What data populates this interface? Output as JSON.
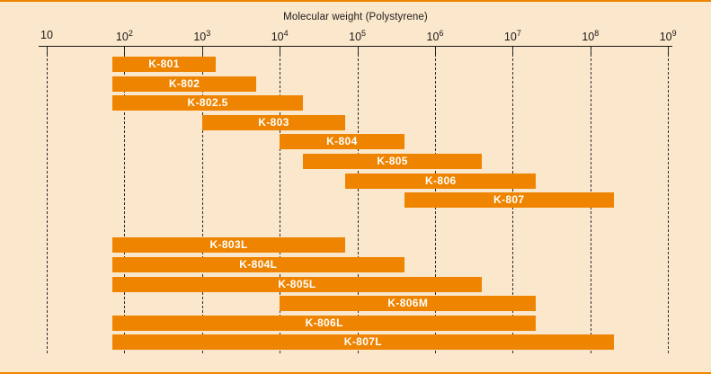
{
  "page": {
    "background_color": "#fbe7cc",
    "frame_color": "#ee8400"
  },
  "chart_data": {
    "type": "bar",
    "subtype": "horizontal-log-range",
    "title": "Molecular weight (Polystyrene)",
    "x_axis": {
      "scale": "log10",
      "min": 10,
      "max": 1000000000,
      "ticks": [
        {
          "value": 10,
          "base": "10",
          "exp": ""
        },
        {
          "value": 100,
          "base": "10",
          "exp": "2"
        },
        {
          "value": 1000,
          "base": "10",
          "exp": "3"
        },
        {
          "value": 10000,
          "base": "10",
          "exp": "4"
        },
        {
          "value": 100000,
          "base": "10",
          "exp": "5"
        },
        {
          "value": 1000000,
          "base": "10",
          "exp": "6"
        },
        {
          "value": 10000000,
          "base": "10",
          "exp": "7"
        },
        {
          "value": 100000000,
          "base": "10",
          "exp": "8"
        },
        {
          "value": 1000000000,
          "base": "10",
          "exp": "9"
        }
      ]
    },
    "grid": "vertical-dashed",
    "legend": "none",
    "bar_color": "#ee8400",
    "bar_label_color": "#ffffff",
    "groups": [
      {
        "name": "analytical-columns",
        "bars": [
          {
            "label": "K-801",
            "min": 70,
            "max": 1500
          },
          {
            "label": "K-802",
            "min": 70,
            "max": 5000
          },
          {
            "label": "K-802.5",
            "min": 70,
            "max": 20000
          },
          {
            "label": "K-803",
            "min": 1000,
            "max": 70000
          },
          {
            "label": "K-804",
            "min": 10000,
            "max": 400000
          },
          {
            "label": "K-805",
            "min": 20000,
            "max": 4000000
          },
          {
            "label": "K-806",
            "min": 70000,
            "max": 20000000
          },
          {
            "label": "K-807",
            "min": 400000,
            "max": 200000000
          }
        ]
      },
      {
        "name": "linear-mixed-columns",
        "bars": [
          {
            "label": "K-803L",
            "min": 70,
            "max": 70000
          },
          {
            "label": "K-804L",
            "min": 70,
            "max": 400000
          },
          {
            "label": "K-805L",
            "min": 70,
            "max": 4000000
          },
          {
            "label": "K-806M",
            "min": 10000,
            "max": 20000000
          },
          {
            "label": "K-806L",
            "min": 70,
            "max": 20000000
          },
          {
            "label": "K-807L",
            "min": 70,
            "max": 200000000
          }
        ]
      }
    ]
  }
}
